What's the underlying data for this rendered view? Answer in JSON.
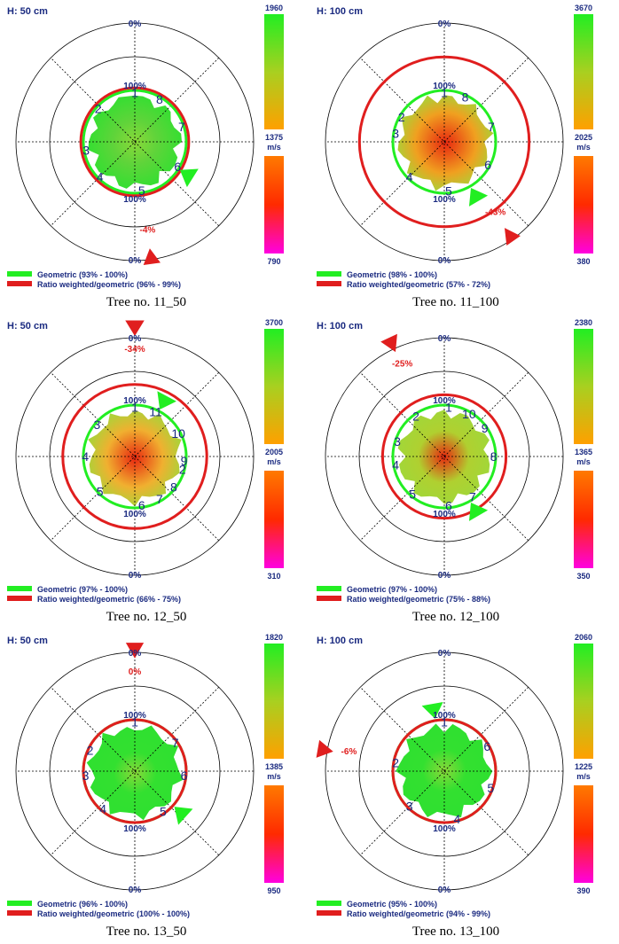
{
  "legend": {
    "geometric_color": "#22ee22",
    "ratio_color": "#e01e1e"
  },
  "colorbar": {
    "unit": "m/s",
    "top_stops": [
      "#22ee22",
      "#a8d020",
      "#ffa000"
    ],
    "bottom_stops": [
      "#ff7a00",
      "#ff2a00",
      "#ff00e0"
    ]
  },
  "chart_data": [
    {
      "type": "polar-tomogram",
      "panel_label": "H: 50 cm",
      "caption": "Tree no. 11_50",
      "scale_labels": {
        "outer_top": "0%",
        "outer_bottom": "0%",
        "inner_top": "100%",
        "inner_bottom": "100%"
      },
      "colorbar": {
        "max": "1960",
        "mid": "1375",
        "min": "790"
      },
      "legend": {
        "geometric": "Geometric (93% - 100%)",
        "ratio": "Ratio weighted/geometric (96% - 99%)"
      },
      "geometric_radius_pct": 100,
      "ratio_radius_pct": 105,
      "ratio_arrow": {
        "label": "-4%",
        "angle_deg": 172,
        "radius_pct": 230
      },
      "geometric_arrow_angle_deg": 122,
      "dominant_color": "#5fd43a",
      "warm_fraction": 0.1,
      "sensors": [
        {
          "label": "1",
          "angle_deg": 0
        },
        {
          "label": "2",
          "angle_deg": -48
        },
        {
          "label": "3",
          "angle_deg": -100
        },
        {
          "label": "4",
          "angle_deg": -135
        },
        {
          "label": "5",
          "angle_deg": 172
        },
        {
          "label": "6",
          "angle_deg": 120
        },
        {
          "label": "7",
          "angle_deg": 72
        },
        {
          "label": "8",
          "angle_deg": 30
        }
      ]
    },
    {
      "type": "polar-tomogram",
      "panel_label": "H: 100 cm",
      "caption": "Tree no. 11_100",
      "scale_labels": {
        "outer_top": "0%",
        "outer_bottom": "0%",
        "inner_top": "100%",
        "inner_bottom": "100%"
      },
      "colorbar": {
        "max": "3670",
        "mid": "2025",
        "min": "380"
      },
      "legend": {
        "geometric": "Geometric (98% - 100%)",
        "ratio": "Ratio weighted/geometric (57% - 72%)"
      },
      "geometric_radius_pct": 100,
      "ratio_radius_pct": 165,
      "ratio_arrow": {
        "label": "-43%",
        "angle_deg": 145,
        "radius_pct": 225
      },
      "geometric_arrow_angle_deg": 150,
      "dominant_color": "#f0a020",
      "warm_fraction": 0.6,
      "sensors": [
        {
          "label": "1",
          "angle_deg": 0
        },
        {
          "label": "2",
          "angle_deg": -60
        },
        {
          "label": "3",
          "angle_deg": -80
        },
        {
          "label": "4",
          "angle_deg": -135
        },
        {
          "label": "5",
          "angle_deg": 175
        },
        {
          "label": "6",
          "angle_deg": 118
        },
        {
          "label": "7",
          "angle_deg": 72
        },
        {
          "label": "8",
          "angle_deg": 25
        }
      ]
    },
    {
      "type": "polar-tomogram",
      "panel_label": "H: 50 cm",
      "caption": "Tree no. 12_50",
      "scale_labels": {
        "outer_top": "0%",
        "outer_bottom": "0%",
        "inner_top": "100%",
        "inner_bottom": "100%"
      },
      "colorbar": {
        "max": "3700",
        "mid": "2005",
        "min": "310"
      },
      "legend": {
        "geometric": "Geometric (97% - 100%)",
        "ratio": "Ratio weighted/geometric (66% - 75%)"
      },
      "geometric_radius_pct": 100,
      "ratio_radius_pct": 140,
      "ratio_arrow": {
        "label": "-34%",
        "angle_deg": 0,
        "radius_pct": 255
      },
      "geometric_arrow_angle_deg": 28,
      "dominant_color": "#f0b030",
      "warm_fraction": 0.5,
      "sensors": [
        {
          "label": "1",
          "angle_deg": 0
        },
        {
          "label": "3",
          "angle_deg": -50
        },
        {
          "label": "4",
          "angle_deg": -90
        },
        {
          "label": "5",
          "angle_deg": -135
        },
        {
          "label": "6",
          "angle_deg": 172
        },
        {
          "label": "7",
          "angle_deg": 150
        },
        {
          "label": "8",
          "angle_deg": 128
        },
        {
          "label": "2",
          "angle_deg": 105
        },
        {
          "label": "9",
          "angle_deg": 95
        },
        {
          "label": "10",
          "angle_deg": 62
        },
        {
          "label": "11",
          "angle_deg": 25
        }
      ]
    },
    {
      "type": "polar-tomogram",
      "panel_label": "H: 100 cm",
      "caption": "Tree no. 12_100",
      "scale_labels": {
        "outer_top": "0%",
        "outer_bottom": "0%",
        "inner_top": "100%",
        "inner_bottom": "100%"
      },
      "colorbar": {
        "max": "2380",
        "mid": "1365",
        "min": "350"
      },
      "legend": {
        "geometric": "Geometric (97% - 100%)",
        "ratio": "Ratio weighted/geometric (75% - 88%)"
      },
      "geometric_radius_pct": 100,
      "ratio_radius_pct": 120,
      "ratio_arrow": {
        "label": "-25%",
        "angle_deg": -25,
        "radius_pct": 245
      },
      "geometric_arrow_angle_deg": 150,
      "dominant_color": "#b0d030",
      "warm_fraction": 0.35,
      "sensors": [
        {
          "label": "1",
          "angle_deg": 5
        },
        {
          "label": "2",
          "angle_deg": -35
        },
        {
          "label": "3",
          "angle_deg": -72
        },
        {
          "label": "4",
          "angle_deg": -100
        },
        {
          "label": "5",
          "angle_deg": -140
        },
        {
          "label": "6",
          "angle_deg": 175
        },
        {
          "label": "7",
          "angle_deg": 145
        },
        {
          "label": "8",
          "angle_deg": 90
        },
        {
          "label": "9",
          "angle_deg": 55
        },
        {
          "label": "10",
          "angle_deg": 30
        }
      ]
    },
    {
      "type": "polar-tomogram",
      "panel_label": "H: 50 cm",
      "caption": "Tree no. 13_50",
      "scale_labels": {
        "outer_top": "0%",
        "outer_bottom": "0%",
        "inner_top": "100%",
        "inner_bottom": "100%"
      },
      "colorbar": {
        "max": "1820",
        "mid": "1385",
        "min": "950"
      },
      "legend": {
        "geometric": "Geometric (96% - 100%)",
        "ratio": "Ratio weighted/geometric (100% - 100%)"
      },
      "geometric_radius_pct": 100,
      "ratio_radius_pct": 100,
      "ratio_arrow": {
        "label": "0%",
        "angle_deg": 0,
        "radius_pct": 240
      },
      "geometric_arrow_angle_deg": 132,
      "dominant_color": "#33e030",
      "warm_fraction": 0.0,
      "sensors": [
        {
          "label": "1",
          "angle_deg": 0
        },
        {
          "label": "2",
          "angle_deg": -65
        },
        {
          "label": "3",
          "angle_deg": -95
        },
        {
          "label": "4",
          "angle_deg": -140
        },
        {
          "label": "5",
          "angle_deg": 145
        },
        {
          "label": "6",
          "angle_deg": 95
        },
        {
          "label": "7",
          "angle_deg": 55
        }
      ]
    },
    {
      "type": "polar-tomogram",
      "panel_label": "H: 100 cm",
      "caption": "Tree no. 13_100",
      "scale_labels": {
        "outer_top": "0%",
        "outer_bottom": "0%",
        "inner_top": "100%",
        "inner_bottom": "100%"
      },
      "colorbar": {
        "max": "2060",
        "mid": "1225",
        "min": "390"
      },
      "legend": {
        "geometric": "Geometric (95% - 100%)",
        "ratio": "Ratio weighted/geometric (94% - 99%)"
      },
      "geometric_radius_pct": 100,
      "ratio_radius_pct": 100,
      "ratio_arrow": {
        "label": "-6%",
        "angle_deg": -80,
        "radius_pct": 240
      },
      "geometric_arrow_angle_deg": -10,
      "dominant_color": "#33e030",
      "warm_fraction": 0.03,
      "sensors": [
        {
          "label": "1",
          "angle_deg": 0
        },
        {
          "label": "2",
          "angle_deg": -80
        },
        {
          "label": "3",
          "angle_deg": -135
        },
        {
          "label": "4",
          "angle_deg": 165
        },
        {
          "label": "5",
          "angle_deg": 110
        },
        {
          "label": "6",
          "angle_deg": 60
        }
      ]
    }
  ]
}
